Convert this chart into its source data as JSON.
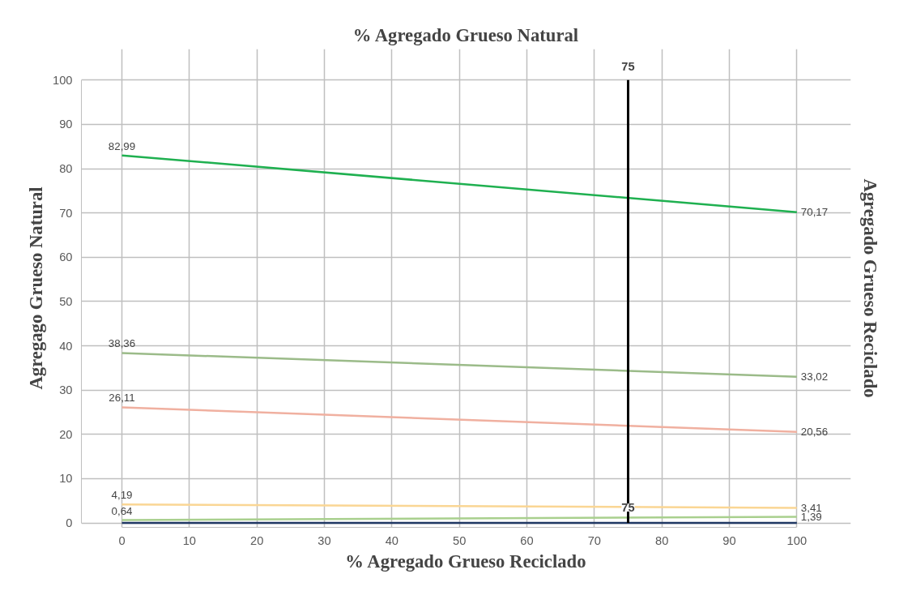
{
  "chart_data": {
    "type": "line",
    "title": "% Agregado Grueso Natural",
    "xlabel": "% Agregado Grueso Reciclado",
    "ylabel": "Agregago Grueso Natural",
    "y2label": "Agregado Grueso Reciclado",
    "x": [
      0,
      100
    ],
    "series": [
      {
        "color": "#1fb050",
        "values": [
          82.99,
          70.17
        ],
        "value_labels": [
          "82,99",
          "70,17"
        ]
      },
      {
        "color": "#9bbb89",
        "values": [
          38.36,
          33.02
        ],
        "value_labels": [
          "38,36",
          "33,02"
        ]
      },
      {
        "color": "#f0b0a0",
        "values": [
          26.11,
          20.56
        ],
        "value_labels": [
          "26,11",
          "20,56"
        ]
      },
      {
        "color": "#fad694",
        "values": [
          4.19,
          3.41
        ],
        "value_labels": [
          "4,19",
          "3,41"
        ]
      },
      {
        "color": "#a9d08e",
        "values": [
          0.64,
          1.39
        ],
        "value_labels": [
          "0,64",
          "1,39"
        ]
      },
      {
        "color": "#203864",
        "values": [
          0,
          0
        ]
      }
    ],
    "xlim": [
      0,
      100
    ],
    "xticks": [
      0,
      10,
      20,
      30,
      40,
      50,
      60,
      70,
      80,
      90,
      100
    ],
    "ylim": [
      0,
      100
    ],
    "yticks": [
      0,
      10,
      20,
      30,
      40,
      50,
      60,
      70,
      80,
      90,
      100
    ],
    "ref_lines": [
      {
        "axis": "x",
        "value": 75,
        "label": "75",
        "color": "#000000"
      }
    ],
    "annotations": [
      {
        "text": "75",
        "x": 75,
        "y": 3.5
      }
    ],
    "grid": true,
    "marker": "none",
    "line_style": "solid"
  }
}
